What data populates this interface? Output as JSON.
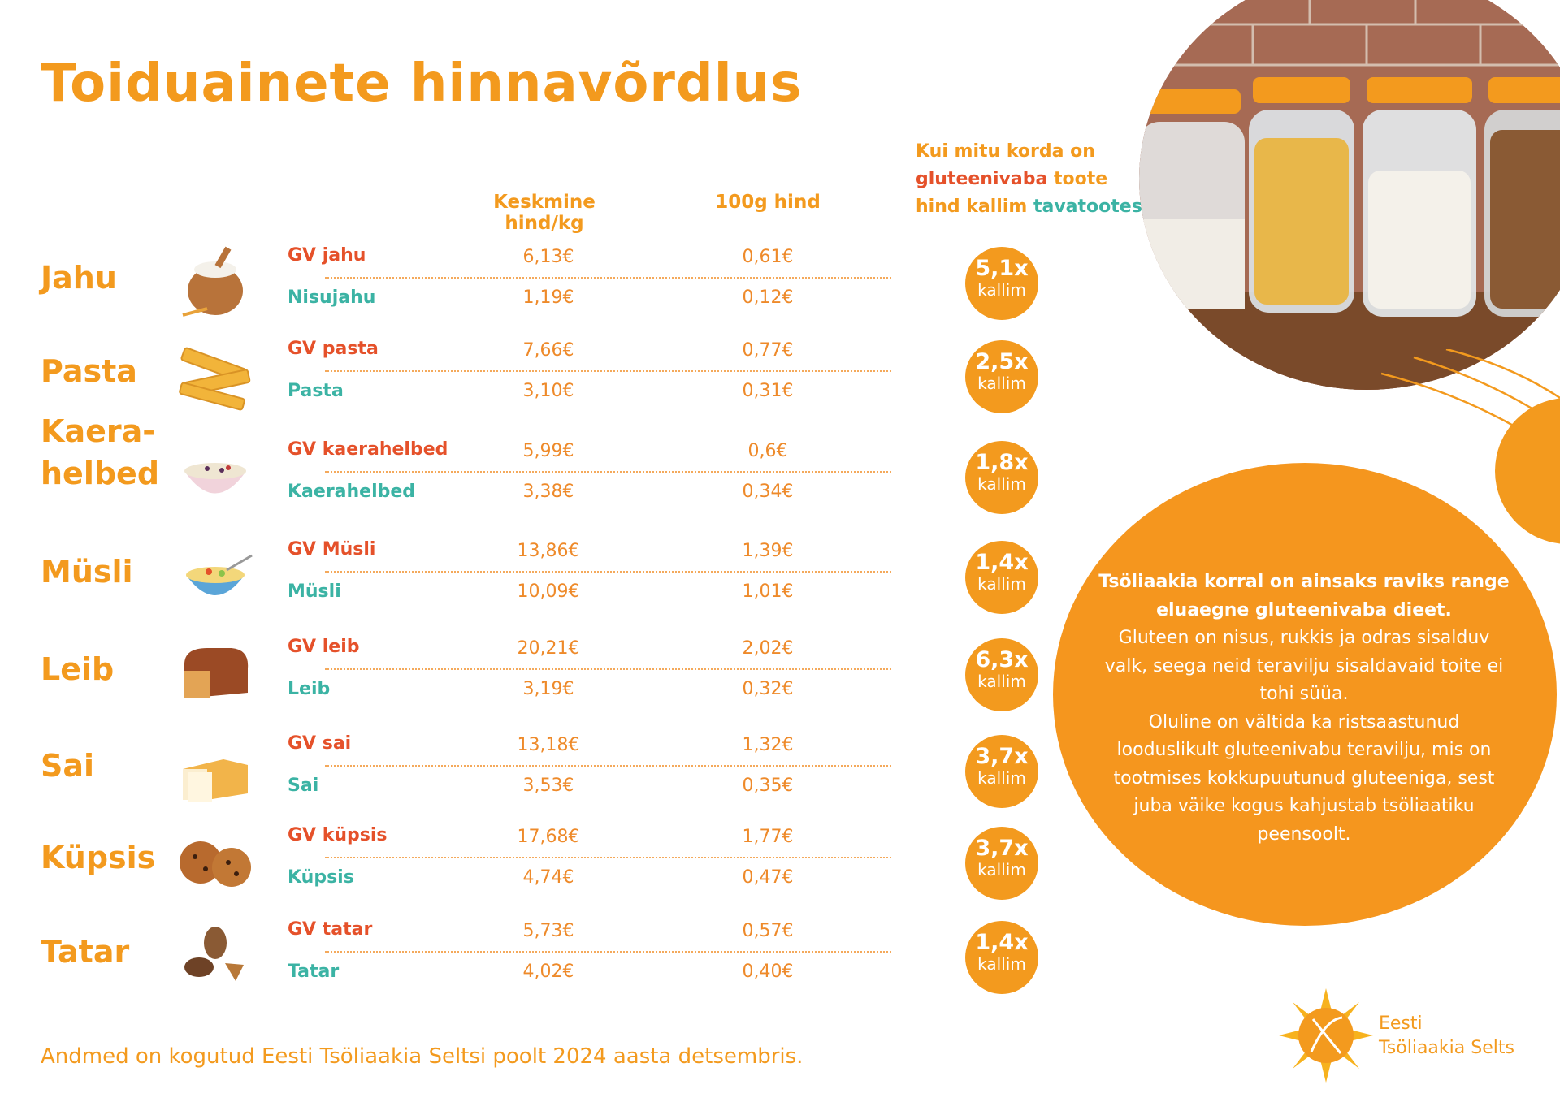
{
  "title": "Toiduainete hinnavõrdlus",
  "columns": {
    "avg_price": "Keskmine hind/kg",
    "price_100g": "100g hind"
  },
  "ratio_header": {
    "line1": "Kui mitu korda on",
    "red_part": "gluteenivaba",
    "line2_rest": " toote",
    "line3": "hind kallim ",
    "teal_part": "tavatootest"
  },
  "chart_data": {
    "type": "table",
    "title": "Toiduainete hinnavõrdlus",
    "columns": [
      "Keskmine hind/kg",
      "100g hind"
    ],
    "rows": [
      {
        "category": "Jahu",
        "icon": "flour-sack-icon",
        "gv_name": "GV jahu",
        "gv_kg": "6,13€",
        "gv_100g": "0,61€",
        "reg_name": "Nisujahu",
        "reg_kg": "1,19€",
        "reg_100g": "0,12€",
        "ratio": "5,1x",
        "ratio_label": "kallim"
      },
      {
        "category": "Pasta",
        "icon": "pasta-icon",
        "gv_name": "GV pasta",
        "gv_kg": "7,66€",
        "gv_100g": "0,77€",
        "reg_name": "Pasta",
        "reg_kg": "3,10€",
        "reg_100g": "0,31€",
        "ratio": "2,5x",
        "ratio_label": "kallim"
      },
      {
        "category": "Kaera-\nhelbed",
        "icon": "oat-bowl-icon",
        "gv_name": "GV kaerahelbed",
        "gv_kg": "5,99€",
        "gv_100g": "0,6€",
        "reg_name": "Kaerahelbed",
        "reg_kg": "3,38€",
        "reg_100g": "0,34€",
        "ratio": "1,8x",
        "ratio_label": "kallim"
      },
      {
        "category": "Müsli",
        "icon": "cereal-bowl-icon",
        "gv_name": "GV Müsli",
        "gv_kg": "13,86€",
        "gv_100g": "1,39€",
        "reg_name": "Müsli",
        "reg_kg": "10,09€",
        "reg_100g": "1,01€",
        "ratio": "1,4x",
        "ratio_label": "kallim"
      },
      {
        "category": "Leib",
        "icon": "rye-bread-icon",
        "gv_name": "GV leib",
        "gv_kg": "20,21€",
        "gv_100g": "2,02€",
        "reg_name": "Leib",
        "reg_kg": "3,19€",
        "reg_100g": "0,32€",
        "ratio": "6,3x",
        "ratio_label": "kallim"
      },
      {
        "category": "Sai",
        "icon": "white-bread-icon",
        "gv_name": "GV sai",
        "gv_kg": "13,18€",
        "gv_100g": "1,32€",
        "reg_name": "Sai",
        "reg_kg": "3,53€",
        "reg_100g": "0,35€",
        "ratio": "3,7x",
        "ratio_label": "kallim"
      },
      {
        "category": "Küpsis",
        "icon": "cookie-icon",
        "gv_name": "GV küpsis",
        "gv_kg": "17,68€",
        "gv_100g": "1,77€",
        "reg_name": "Küpsis",
        "reg_kg": "4,74€",
        "reg_100g": "0,47€",
        "ratio": "3,7x",
        "ratio_label": "kallim"
      },
      {
        "category": "Tatar",
        "icon": "buckwheat-icon",
        "gv_name": "GV tatar",
        "gv_kg": "5,73€",
        "gv_100g": "0,57€",
        "reg_name": "Tatar",
        "reg_kg": "4,02€",
        "reg_100g": "0,40€",
        "ratio": "1,4x",
        "ratio_label": "kallim"
      }
    ]
  },
  "info": {
    "bold": "Tsöliaakia korral on ainsaks raviks range eluaegne gluteenivaba dieet.",
    "p1": "Gluteen on nisus, rukkis ja odras sisalduv valk, seega neid teravilju sisaldavaid toite ei tohi süüa.",
    "p2": "Oluline on vältida ka ristsaastunud looduslikult gluteenivabu teravilju, mis on tootmises kokkupuutunud gluteeniga, sest juba väike kogus kahjustab tsöliaatiku peensoolt."
  },
  "footer": "Andmed on kogutud Eesti Tsöliaakia Seltsi poolt 2024 aasta detsembris.",
  "logo": {
    "line1": "Eesti",
    "line2": "Tsöliaakia Selts"
  },
  "colors": {
    "orange": "#f39a1e",
    "red": "#e5512a",
    "teal": "#3bb3a4",
    "circle": "#f5961e"
  }
}
